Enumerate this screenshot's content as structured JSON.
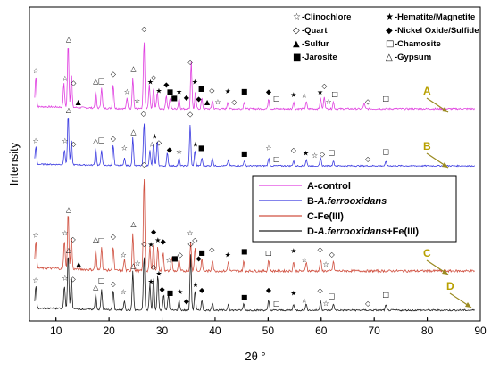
{
  "chart_data": {
    "type": "line",
    "title": "",
    "xlabel": "2θ °",
    "ylabel": "Intensity",
    "xlim": [
      5,
      90
    ],
    "x_ticks": [
      10,
      20,
      30,
      40,
      50,
      60,
      70,
      80,
      90
    ],
    "y_ticks_shown": false,
    "grid": false,
    "phase_legend": [
      {
        "symbol": "☆",
        "label": "-Clinochlore"
      },
      {
        "symbol": "★",
        "label": "-Hematite/Magnetite"
      },
      {
        "symbol": "◇",
        "label": "-Quart"
      },
      {
        "symbol": "◆",
        "label": "-Nickel Oxide/Sulfide"
      },
      {
        "symbol": "▲",
        "label": "-Sulfur"
      },
      {
        "symbol": "□",
        "label": "-Chamosite"
      },
      {
        "symbol": "■",
        "label": "-Jarosite"
      },
      {
        "symbol": "△",
        "label": "-Gypsum"
      }
    ],
    "legend_placement": "center-right",
    "series": [
      {
        "id": "A",
        "tag": "A",
        "name": "A-control",
        "name_prefix": "A-",
        "name_italic": "",
        "name_suffix": "control",
        "color": "#e040e0",
        "tag_color": "#b8a000",
        "peaks": [
          [
            6.2,
            0.45
          ],
          [
            11.5,
            0.35
          ],
          [
            12.3,
            0.95
          ],
          [
            12.9,
            0.5
          ],
          [
            17.5,
            0.25
          ],
          [
            18.6,
            0.3
          ],
          [
            20.8,
            0.35
          ],
          [
            23.4,
            0.15
          ],
          [
            24.5,
            0.45
          ],
          [
            26.6,
            1.0
          ],
          [
            27.6,
            0.35
          ],
          [
            28.4,
            0.3
          ],
          [
            29.1,
            0.25
          ],
          [
            30.8,
            0.2
          ],
          [
            31.5,
            0.15
          ],
          [
            33.2,
            0.15
          ],
          [
            35.5,
            0.7
          ],
          [
            36.3,
            0.25
          ],
          [
            37.5,
            0.15
          ],
          [
            39.5,
            0.12
          ],
          [
            42.4,
            0.1
          ],
          [
            45.5,
            0.1
          ],
          [
            50.1,
            0.15
          ],
          [
            54.8,
            0.1
          ],
          [
            57.2,
            0.1
          ],
          [
            59.9,
            0.15
          ],
          [
            60.6,
            0.18
          ],
          [
            62.3,
            0.1
          ],
          [
            68.1,
            0.08
          ]
        ]
      },
      {
        "id": "B",
        "tag": "B",
        "name": "B-A.ferrooxidans",
        "name_prefix": "B-",
        "name_italic": "A.ferrooxidans",
        "name_suffix": "",
        "color": "#3a3ae0",
        "tag_color": "#b8a000",
        "peaks": [
          [
            6.2,
            0.35
          ],
          [
            11.6,
            0.3
          ],
          [
            12.3,
            1.0
          ],
          [
            12.9,
            0.5
          ],
          [
            17.5,
            0.35
          ],
          [
            18.6,
            0.3
          ],
          [
            20.8,
            0.4
          ],
          [
            22.9,
            0.15
          ],
          [
            24.5,
            0.55
          ],
          [
            26.6,
            0.85
          ],
          [
            27.7,
            0.3
          ],
          [
            28.4,
            0.45
          ],
          [
            29.1,
            0.5
          ],
          [
            31.0,
            0.25
          ],
          [
            33.2,
            0.15
          ],
          [
            35.3,
            0.8
          ],
          [
            36.2,
            0.3
          ],
          [
            37.5,
            0.15
          ],
          [
            39.5,
            0.15
          ],
          [
            42.5,
            0.12
          ],
          [
            45.5,
            0.1
          ],
          [
            50.1,
            0.15
          ],
          [
            54.8,
            0.1
          ],
          [
            57.2,
            0.12
          ],
          [
            59.9,
            0.15
          ],
          [
            62.3,
            0.1
          ],
          [
            72.2,
            0.08
          ]
        ]
      },
      {
        "id": "C",
        "tag": "C",
        "name": "C-Fe(III)",
        "name_prefix": "C-",
        "name_italic": "",
        "name_suffix": "Fe(III)",
        "color": "#d05040",
        "tag_color": "#b8a000",
        "peaks": [
          [
            6.2,
            0.3
          ],
          [
            11.6,
            0.3
          ],
          [
            12.3,
            0.6
          ],
          [
            12.9,
            0.35
          ],
          [
            17.5,
            0.22
          ],
          [
            18.6,
            0.25
          ],
          [
            20.8,
            0.25
          ],
          [
            22.9,
            0.12
          ],
          [
            24.5,
            0.4
          ],
          [
            26.6,
            1.0
          ],
          [
            27.7,
            0.25
          ],
          [
            28.4,
            0.3
          ],
          [
            29.2,
            0.25
          ],
          [
            30.2,
            0.2
          ],
          [
            31.8,
            0.15
          ],
          [
            33.2,
            0.12
          ],
          [
            35.4,
            0.3
          ],
          [
            36.2,
            0.25
          ],
          [
            37.5,
            0.12
          ],
          [
            39.5,
            0.12
          ],
          [
            42.5,
            0.1
          ],
          [
            45.4,
            0.1
          ],
          [
            50.1,
            0.12
          ],
          [
            54.8,
            0.1
          ],
          [
            57.2,
            0.1
          ],
          [
            59.9,
            0.12
          ],
          [
            62.3,
            0.1
          ]
        ]
      },
      {
        "id": "D",
        "tag": "D",
        "name": "D-A.ferrooxidans+Fe(III)",
        "name_prefix": "D-",
        "name_italic": "A.ferrooxidans",
        "name_suffix": "+Fe(III)",
        "color": "#202020",
        "tag_color": "#b8a000",
        "peaks": [
          [
            6.2,
            0.35
          ],
          [
            11.6,
            0.35
          ],
          [
            12.3,
            0.85
          ],
          [
            12.9,
            0.5
          ],
          [
            17.5,
            0.25
          ],
          [
            18.6,
            0.3
          ],
          [
            20.8,
            0.3
          ],
          [
            22.9,
            0.15
          ],
          [
            24.5,
            0.6
          ],
          [
            26.6,
            0.85
          ],
          [
            27.7,
            0.4
          ],
          [
            28.4,
            0.5
          ],
          [
            29.2,
            0.55
          ],
          [
            30.3,
            0.25
          ],
          [
            31.2,
            0.25
          ],
          [
            33.2,
            0.15
          ],
          [
            35.4,
            0.85
          ],
          [
            36.2,
            0.3
          ],
          [
            37.5,
            0.15
          ],
          [
            39.5,
            0.12
          ],
          [
            42.5,
            0.1
          ],
          [
            45.4,
            0.1
          ],
          [
            50.1,
            0.15
          ],
          [
            54.8,
            0.1
          ],
          [
            57.2,
            0.1
          ],
          [
            59.9,
            0.15
          ],
          [
            62.3,
            0.1
          ],
          [
            72.2,
            0.08
          ]
        ]
      }
    ],
    "peak_markers": {
      "A": [
        [
          6.2,
          "☆"
        ],
        [
          11.7,
          "☆"
        ],
        [
          12.4,
          "△"
        ],
        [
          13.3,
          "◇"
        ],
        [
          14.2,
          "▲"
        ],
        [
          17.5,
          "△"
        ],
        [
          18.6,
          "□"
        ],
        [
          20.8,
          "◇"
        ],
        [
          23.4,
          "☆"
        ],
        [
          24.6,
          "△"
        ],
        [
          25.3,
          "☆"
        ],
        [
          26.6,
          "◇"
        ],
        [
          27.8,
          "★"
        ],
        [
          28.4,
          "◇"
        ],
        [
          29.4,
          "★"
        ],
        [
          30.8,
          "◆"
        ],
        [
          31.5,
          "■"
        ],
        [
          32.3,
          "■"
        ],
        [
          33.2,
          "★"
        ],
        [
          34.6,
          "◆"
        ],
        [
          35.3,
          "◇"
        ],
        [
          36.2,
          "★"
        ],
        [
          36.9,
          "◆"
        ],
        [
          37.4,
          "■"
        ],
        [
          38.5,
          "▲"
        ],
        [
          39.4,
          "◇"
        ],
        [
          40.5,
          "☆"
        ],
        [
          42.4,
          "★"
        ],
        [
          43.6,
          "◇"
        ],
        [
          45.5,
          "■"
        ],
        [
          50.1,
          "◆"
        ],
        [
          51.6,
          "□"
        ],
        [
          54.8,
          "★"
        ],
        [
          56.8,
          "☆"
        ],
        [
          59.8,
          "★"
        ],
        [
          60.6,
          "◇"
        ],
        [
          61.4,
          "☆"
        ],
        [
          62.6,
          "□"
        ],
        [
          68.8,
          "◇"
        ],
        [
          72.2,
          "□"
        ]
      ],
      "B": [
        [
          6.2,
          "☆"
        ],
        [
          11.7,
          "☆"
        ],
        [
          12.4,
          "△"
        ],
        [
          13.3,
          "◇"
        ],
        [
          17.5,
          "△"
        ],
        [
          18.6,
          "□"
        ],
        [
          20.8,
          "◇"
        ],
        [
          22.9,
          "☆"
        ],
        [
          24.6,
          "△"
        ],
        [
          26.5,
          "◇"
        ],
        [
          28.1,
          "☆"
        ],
        [
          28.6,
          "★"
        ],
        [
          29.4,
          "◇"
        ],
        [
          31.4,
          "◆"
        ],
        [
          33.2,
          "☆"
        ],
        [
          35.3,
          "◇"
        ],
        [
          36.3,
          "★"
        ],
        [
          37.4,
          "■"
        ],
        [
          45.5,
          "■"
        ],
        [
          50.1,
          "☆"
        ],
        [
          51.6,
          "□"
        ],
        [
          54.8,
          "◇"
        ],
        [
          57.1,
          "★"
        ],
        [
          58.8,
          "☆"
        ],
        [
          60.2,
          "◇"
        ],
        [
          62.0,
          "□"
        ],
        [
          68.8,
          "◇"
        ],
        [
          72.2,
          "□"
        ]
      ],
      "C": [
        [
          6.2,
          "☆"
        ],
        [
          11.7,
          "☆"
        ],
        [
          12.4,
          "△"
        ],
        [
          13.2,
          "◇"
        ],
        [
          14.3,
          "▲"
        ],
        [
          17.5,
          "△"
        ],
        [
          18.6,
          "□"
        ],
        [
          20.8,
          "◇"
        ],
        [
          22.7,
          "☆"
        ],
        [
          24.6,
          "△"
        ],
        [
          25.4,
          "☆"
        ],
        [
          26.6,
          "◇"
        ],
        [
          27.9,
          "★"
        ],
        [
          28.4,
          "◆"
        ],
        [
          29.2,
          "★"
        ],
        [
          30.2,
          "◆"
        ],
        [
          31.3,
          "☆"
        ],
        [
          32.4,
          "■"
        ],
        [
          33.4,
          "◇"
        ],
        [
          35.3,
          "☆"
        ],
        [
          36.2,
          "◇"
        ],
        [
          36.9,
          "◆"
        ],
        [
          37.5,
          "■"
        ],
        [
          39.4,
          "◇"
        ],
        [
          42.4,
          "★"
        ],
        [
          45.5,
          "■"
        ],
        [
          50.1,
          "□"
        ],
        [
          54.8,
          "★"
        ],
        [
          56.8,
          "☆"
        ],
        [
          59.8,
          "◇"
        ],
        [
          60.9,
          "☆"
        ],
        [
          62.0,
          "◇"
        ]
      ],
      "D": [
        [
          6.2,
          "☆"
        ],
        [
          11.7,
          "☆"
        ],
        [
          12.4,
          "△"
        ],
        [
          13.2,
          "◇"
        ],
        [
          17.5,
          "△"
        ],
        [
          18.6,
          "□"
        ],
        [
          20.8,
          "◇"
        ],
        [
          22.7,
          "☆"
        ],
        [
          24.6,
          "△"
        ],
        [
          26.6,
          "◇"
        ],
        [
          27.9,
          "★"
        ],
        [
          28.4,
          "◇"
        ],
        [
          29.4,
          "★"
        ],
        [
          30.0,
          "◆"
        ],
        [
          31.5,
          "■"
        ],
        [
          33.4,
          "★"
        ],
        [
          34.6,
          "◆"
        ],
        [
          35.4,
          "◇"
        ],
        [
          36.3,
          "★"
        ],
        [
          37.5,
          "◆"
        ],
        [
          45.5,
          "■"
        ],
        [
          50.1,
          "◆"
        ],
        [
          51.6,
          "□"
        ],
        [
          54.8,
          "★"
        ],
        [
          56.8,
          "☆"
        ],
        [
          59.8,
          "◇"
        ],
        [
          60.9,
          "☆"
        ],
        [
          62.0,
          "□"
        ],
        [
          68.8,
          "◇"
        ],
        [
          72.2,
          "□"
        ]
      ]
    }
  }
}
